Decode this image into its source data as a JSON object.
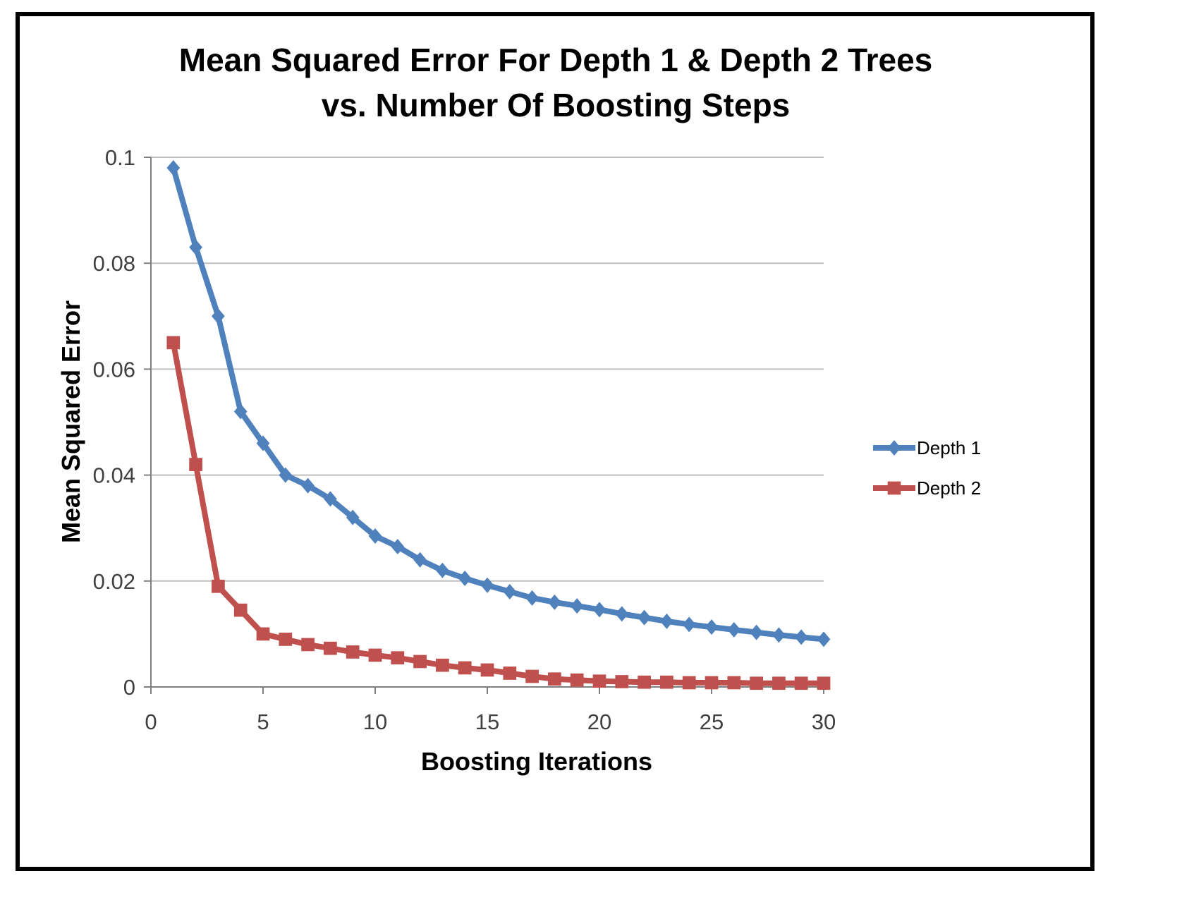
{
  "chart_data": {
    "type": "line",
    "title": [
      "Mean Squared Error For Depth 1 & Depth 2 Trees",
      "vs. Number Of Boosting Steps"
    ],
    "xlabel": "Boosting Iterations",
    "ylabel": "Mean Squared Error",
    "xlim": [
      0,
      30
    ],
    "ylim": [
      0,
      0.1
    ],
    "xticks": [
      "0",
      "5",
      "10",
      "15",
      "20",
      "25",
      "30"
    ],
    "yticks": [
      "0",
      "0.02",
      "0.04",
      "0.06",
      "0.08",
      "0.1"
    ],
    "grid": "horizontal",
    "legend_position": "right",
    "x": [
      1,
      2,
      3,
      4,
      5,
      6,
      7,
      8,
      9,
      10,
      11,
      12,
      13,
      14,
      15,
      16,
      17,
      18,
      19,
      20,
      21,
      22,
      23,
      24,
      25,
      26,
      27,
      28,
      29,
      30
    ],
    "series": [
      {
        "name": "Depth 1",
        "color": "#4F81BD",
        "marker": "diamond",
        "values": [
          0.098,
          0.083,
          0.07,
          0.052,
          0.046,
          0.04,
          0.038,
          0.0355,
          0.032,
          0.0285,
          0.0265,
          0.024,
          0.022,
          0.0205,
          0.0192,
          0.018,
          0.0168,
          0.016,
          0.0153,
          0.0146,
          0.0138,
          0.0131,
          0.0124,
          0.0118,
          0.0113,
          0.0108,
          0.0103,
          0.0098,
          0.0094,
          0.009
        ]
      },
      {
        "name": "Depth 2",
        "color": "#C0504D",
        "marker": "square",
        "values": [
          0.065,
          0.042,
          0.019,
          0.0145,
          0.01,
          0.009,
          0.008,
          0.0073,
          0.0066,
          0.006,
          0.0055,
          0.0048,
          0.0041,
          0.0036,
          0.0032,
          0.0026,
          0.002,
          0.0015,
          0.0013,
          0.0011,
          0.001,
          0.0009,
          0.0009,
          0.0008,
          0.0008,
          0.0008,
          0.0007,
          0.0007,
          0.0007,
          0.0007
        ]
      }
    ]
  }
}
